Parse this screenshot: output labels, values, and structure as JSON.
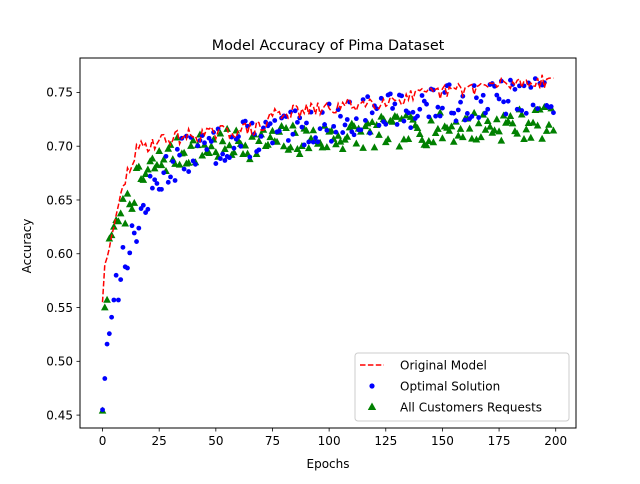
{
  "chart_data": {
    "type": "line",
    "title": "Model Accuracy of Pima Dataset",
    "xlabel": "Epochs",
    "ylabel": "Accuracy",
    "xlim": [
      -9.95,
      208.95
    ],
    "ylim": [
      0.438,
      0.782
    ],
    "x_ticks": [
      0,
      25,
      50,
      75,
      100,
      125,
      150,
      175,
      200
    ],
    "y_ticks": [
      0.45,
      0.5,
      0.55,
      0.6,
      0.65,
      0.7,
      0.75
    ],
    "grid": false,
    "legend_position": "lower-right",
    "series": [
      {
        "name": "Original Model",
        "style": "dashed-line",
        "color": "#ff0000",
        "anchors": [
          [
            0,
            0.555
          ],
          [
            1,
            0.59
          ],
          [
            3,
            0.605
          ],
          [
            5,
            0.625
          ],
          [
            7,
            0.645
          ],
          [
            9,
            0.66
          ],
          [
            11,
            0.675
          ],
          [
            13,
            0.685
          ],
          [
            15,
            0.695
          ],
          [
            18,
            0.7
          ],
          [
            22,
            0.703
          ],
          [
            27,
            0.706
          ],
          [
            32,
            0.708
          ],
          [
            40,
            0.71
          ],
          [
            50,
            0.712
          ],
          [
            60,
            0.715
          ],
          [
            72,
            0.717
          ],
          [
            74,
            0.73
          ],
          [
            85,
            0.732
          ],
          [
            100,
            0.735
          ],
          [
            115,
            0.74
          ],
          [
            130,
            0.744
          ],
          [
            150,
            0.75
          ],
          [
            165,
            0.755
          ],
          [
            180,
            0.758
          ],
          [
            199,
            0.762
          ]
        ],
        "wiggle": 0.007
      },
      {
        "name": "Optimal Solution",
        "style": "dot",
        "color": "#0000ff",
        "anchors": [
          [
            0,
            0.455
          ],
          [
            1,
            0.484
          ],
          [
            2,
            0.516
          ],
          [
            4,
            0.541
          ],
          [
            5,
            0.557
          ],
          [
            6,
            0.58
          ],
          [
            7,
            0.557
          ],
          [
            9,
            0.598
          ],
          [
            11,
            0.603
          ],
          [
            13,
            0.61
          ],
          [
            15,
            0.625
          ],
          [
            17,
            0.635
          ],
          [
            19,
            0.645
          ],
          [
            21,
            0.655
          ],
          [
            24,
            0.665
          ],
          [
            27,
            0.675
          ],
          [
            30,
            0.683
          ],
          [
            35,
            0.69
          ],
          [
            40,
            0.695
          ],
          [
            50,
            0.7
          ],
          [
            60,
            0.705
          ],
          [
            70,
            0.71
          ],
          [
            80,
            0.712
          ],
          [
            90,
            0.718
          ],
          [
            100,
            0.722
          ],
          [
            115,
            0.728
          ],
          [
            130,
            0.733
          ],
          [
            145,
            0.738
          ],
          [
            160,
            0.741
          ],
          [
            175,
            0.744
          ],
          [
            199,
            0.748
          ]
        ],
        "scatter": 0.018
      },
      {
        "name": "All Customers Requests",
        "style": "triangle",
        "color": "#008000",
        "anchors": [
          [
            0,
            0.454
          ],
          [
            1,
            0.55
          ],
          [
            2,
            0.557
          ],
          [
            3,
            0.614
          ],
          [
            5,
            0.625
          ],
          [
            7,
            0.63
          ],
          [
            9,
            0.638
          ],
          [
            11,
            0.645
          ],
          [
            13,
            0.655
          ],
          [
            15,
            0.665
          ],
          [
            18,
            0.67
          ],
          [
            22,
            0.68
          ],
          [
            27,
            0.688
          ],
          [
            32,
            0.693
          ],
          [
            40,
            0.697
          ],
          [
            50,
            0.7
          ],
          [
            60,
            0.702
          ],
          [
            80,
            0.705
          ],
          [
            100,
            0.708
          ],
          [
            120,
            0.712
          ],
          [
            140,
            0.715
          ],
          [
            160,
            0.718
          ],
          [
            180,
            0.72
          ],
          [
            199,
            0.722
          ]
        ],
        "scatter": 0.015
      }
    ]
  }
}
